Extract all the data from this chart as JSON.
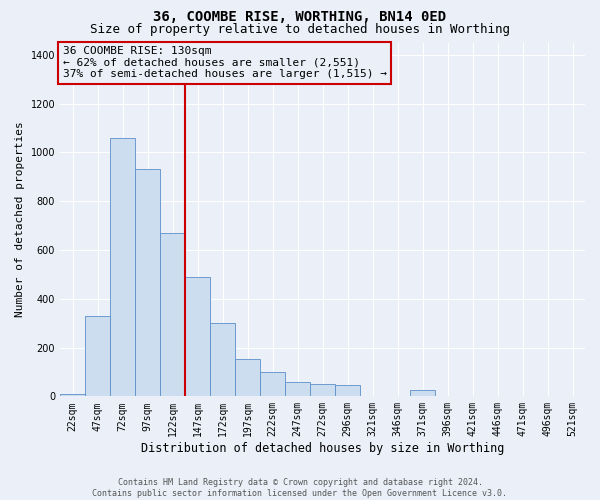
{
  "title": "36, COOMBE RISE, WORTHING, BN14 0ED",
  "subtitle": "Size of property relative to detached houses in Worthing",
  "xlabel": "Distribution of detached houses by size in Worthing",
  "ylabel": "Number of detached properties",
  "footer_line1": "Contains HM Land Registry data © Crown copyright and database right 2024.",
  "footer_line2": "Contains public sector information licensed under the Open Government Licence v3.0.",
  "annotation_line1": "36 COOMBE RISE: 130sqm",
  "annotation_line2": "← 62% of detached houses are smaller (2,551)",
  "annotation_line3": "37% of semi-detached houses are larger (1,515) →",
  "categories": [
    "22sqm",
    "47sqm",
    "72sqm",
    "97sqm",
    "122sqm",
    "147sqm",
    "172sqm",
    "197sqm",
    "222sqm",
    "247sqm",
    "272sqm",
    "296sqm",
    "321sqm",
    "346sqm",
    "371sqm",
    "396sqm",
    "421sqm",
    "446sqm",
    "471sqm",
    "496sqm",
    "521sqm"
  ],
  "values": [
    10,
    330,
    1060,
    930,
    670,
    490,
    300,
    155,
    100,
    60,
    50,
    45,
    0,
    0,
    25,
    0,
    0,
    0,
    0,
    0,
    0
  ],
  "bar_color": "#ccddf0",
  "bar_edge_color": "#5b8fc9",
  "marker_color": "#cc0000",
  "background_color": "#eaeff8",
  "ylim": [
    0,
    1450
  ],
  "yticks": [
    0,
    200,
    400,
    600,
    800,
    1000,
    1200,
    1400
  ],
  "annotation_box_edge_color": "#cc0000",
  "title_fontsize": 10,
  "subtitle_fontsize": 9,
  "xlabel_fontsize": 8.5,
  "ylabel_fontsize": 8,
  "tick_fontsize": 7,
  "annotation_fontsize": 8,
  "footer_fontsize": 6,
  "property_line_x": 4.5
}
